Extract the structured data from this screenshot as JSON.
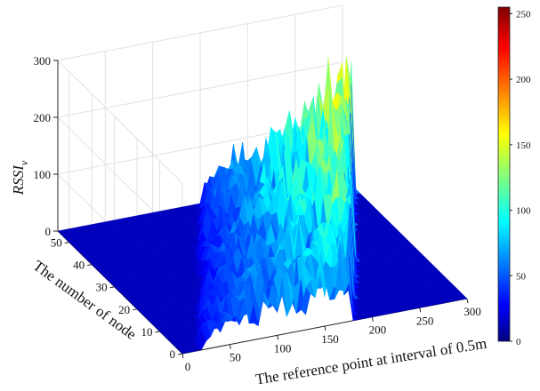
{
  "chart_data": {
    "type": "surface",
    "title": "",
    "xlabel": "The reference point at interval of 0.5m",
    "ylabel": "The number of node",
    "zlabel_base": "RSSI",
    "zlabel_sub": "v",
    "xlim": [
      0,
      300
    ],
    "ylim": [
      0,
      55
    ],
    "zlim": [
      0,
      300
    ],
    "x_ticks": [
      "0",
      "50",
      "100",
      "150",
      "200",
      "250",
      "300"
    ],
    "y_ticks": [
      "0",
      "10",
      "20",
      "30",
      "40",
      "50"
    ],
    "z_ticks": [
      "0",
      "100",
      "200",
      "300"
    ],
    "colorbar": {
      "range": [
        0,
        255
      ],
      "ticks": [
        "0",
        "50",
        "100",
        "150",
        "200",
        "250"
      ],
      "colormap": "jet"
    },
    "grid": true,
    "description_series": [
      {
        "name": "",
        "active_band": {
          "x_from_per_node": 0,
          "x_span": 160
        }
      }
    ]
  }
}
